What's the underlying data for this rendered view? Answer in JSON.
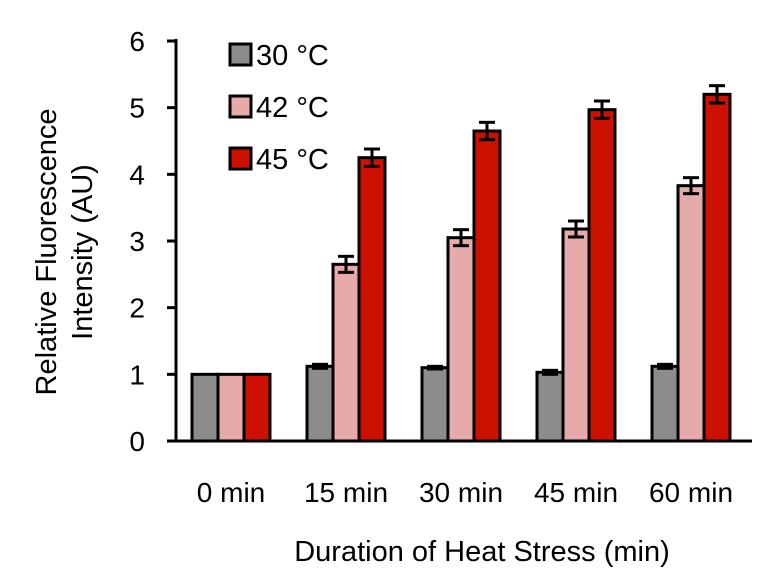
{
  "chart_data": {
    "type": "bar",
    "categories": [
      "0 min",
      "15 min",
      "30 min",
      "45 min",
      "60 min"
    ],
    "series": [
      {
        "name": "30 °C",
        "color": "#8c8c8c",
        "values": [
          1.0,
          1.12,
          1.1,
          1.03,
          1.12
        ],
        "errors": [
          0,
          0.03,
          0.02,
          0.03,
          0.03
        ]
      },
      {
        "name": "42 °C",
        "color": "#e6aaaa",
        "values": [
          1.0,
          2.65,
          3.05,
          3.18,
          3.83
        ],
        "errors": [
          0,
          0.12,
          0.12,
          0.12,
          0.12
        ]
      },
      {
        "name": "45 °C",
        "color": "#cc1100",
        "values": [
          1.0,
          4.25,
          4.65,
          4.97,
          5.2
        ],
        "errors": [
          0,
          0.13,
          0.13,
          0.13,
          0.13
        ]
      }
    ],
    "xlabel": "Duration of Heat Stress (min)",
    "ylabel_lines": [
      "Relative Fluorescence",
      "Intensity (AU)"
    ],
    "ylim": [
      0,
      6
    ],
    "yticks": [
      "0",
      "1",
      "2",
      "3",
      "4",
      "5",
      "6"
    ],
    "legend_position": "top-left",
    "grid": false
  }
}
